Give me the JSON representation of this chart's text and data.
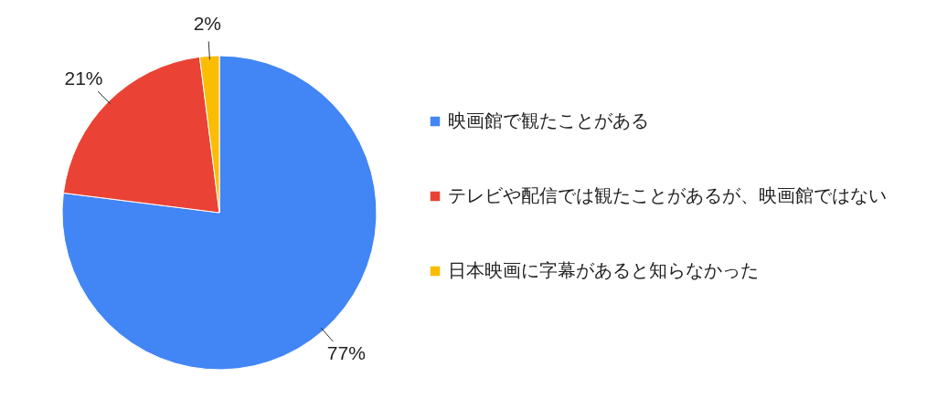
{
  "chart_data": {
    "type": "pie",
    "categories": [
      "映画館で観たことがある",
      "テレビや配信では観たことがあるが、映画館ではない",
      "日本映画に字幕があると知らなかった"
    ],
    "values": [
      77,
      21,
      2
    ],
    "colors": [
      "#4285f4",
      "#ea4335",
      "#fbbc04"
    ],
    "value_labels": [
      "77%",
      "21%",
      "2%"
    ],
    "legend": "right"
  }
}
